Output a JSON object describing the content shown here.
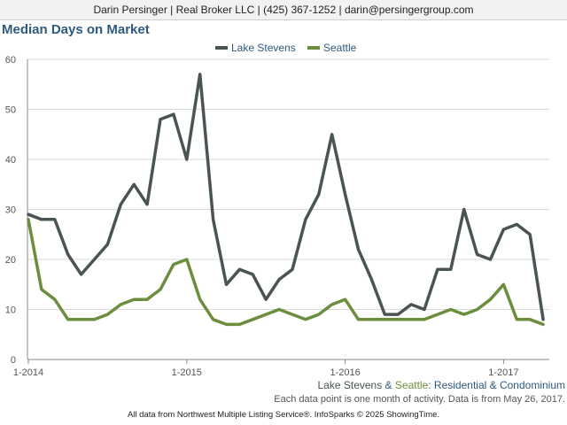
{
  "header": {
    "agent_line": "Darin Persinger | Real Broker LLC | (425) 367-1252 | darin@persingergroup.com"
  },
  "chart_data": {
    "type": "line",
    "title": "Median Days on Market",
    "ylim": [
      0,
      60
    ],
    "yticks": [
      0,
      10,
      20,
      30,
      40,
      50,
      60
    ],
    "x_start_month_label": "1-2014",
    "xticks": [
      {
        "index": 0,
        "label": "1-2014"
      },
      {
        "index": 12,
        "label": "1-2015"
      },
      {
        "index": 24,
        "label": "1-2016"
      },
      {
        "index": 36,
        "label": "1-2017"
      }
    ],
    "grid": true,
    "legend_position": "top-center",
    "series": [
      {
        "name": "Lake Stevens",
        "color": "#4a5552",
        "values": [
          29,
          28,
          28,
          21,
          17,
          20,
          23,
          31,
          35,
          31,
          48,
          49,
          40,
          57,
          28,
          15,
          18,
          17,
          12,
          16,
          18,
          28,
          33,
          45,
          33,
          22,
          16,
          9,
          9,
          11,
          10,
          18,
          18,
          30,
          21,
          20,
          26,
          27,
          25,
          8
        ]
      },
      {
        "name": "Seattle",
        "color": "#6b8e3e",
        "values": [
          28,
          14,
          12,
          8,
          8,
          8,
          9,
          11,
          12,
          12,
          14,
          19,
          20,
          12,
          8,
          7,
          7,
          8,
          9,
          10,
          9,
          8,
          9,
          11,
          12,
          8,
          8,
          8,
          8,
          8,
          8,
          9,
          10,
          9,
          10,
          12,
          15,
          8,
          8,
          7
        ]
      }
    ]
  },
  "footer": {
    "subtitle": {
      "series_a": "Lake Stevens",
      "amp": " & ",
      "series_b": "Seattle",
      "rest": ": Residential & Condominium"
    },
    "note": "Each data point is one month of activity. Data is from May 26, 2017.",
    "source": "All data from Northwest Multiple Listing Service®. InfoSparks © 2025 ShowingTime."
  },
  "colors": {
    "title": "#2e5a7f",
    "axis_text": "#555555",
    "grid": "#d9d9d9",
    "subtitle_text": "#2e5a7f"
  }
}
